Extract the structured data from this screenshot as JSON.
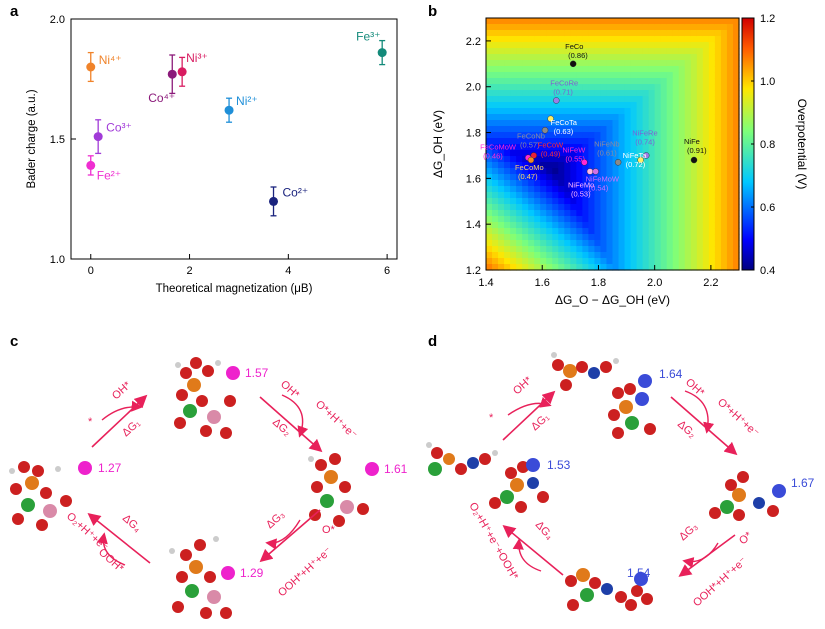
{
  "panel_labels": {
    "a": "a",
    "b": "b",
    "c": "c",
    "d": "d"
  },
  "chart_data": [
    {
      "type": "scatter",
      "panel": "a",
      "xlabel": "Theoretical magnetization (μB)",
      "ylabel": "Bader charge (a.u.)",
      "xlim": [
        -0.4,
        6.2
      ],
      "ylim": [
        1.0,
        2.0
      ],
      "xticks": [
        "0",
        "2",
        "4",
        "6"
      ],
      "yticks": [
        "1.0",
        "1.5",
        "2.0"
      ],
      "points": [
        {
          "label": "Ni⁴⁺",
          "x": 0.0,
          "y": 1.8,
          "err": 0.06,
          "color": "#f0832a"
        },
        {
          "label": "Co³⁺",
          "x": 0.15,
          "y": 1.51,
          "err": 0.07,
          "color": "#a13bd8"
        },
        {
          "label": "Fe²⁺",
          "x": 0.0,
          "y": 1.39,
          "err": 0.04,
          "color": "#ef2ed1"
        },
        {
          "label": "Co⁴⁺",
          "x": 1.65,
          "y": 1.77,
          "err": 0.08,
          "color": "#8b1a7a"
        },
        {
          "label": "Ni³⁺",
          "x": 1.85,
          "y": 1.78,
          "err": 0.06,
          "color": "#d81b60"
        },
        {
          "label": "Ni²⁺",
          "x": 2.8,
          "y": 1.62,
          "err": 0.05,
          "color": "#1f8fd8"
        },
        {
          "label": "Co²⁺",
          "x": 3.7,
          "y": 1.24,
          "err": 0.06,
          "color": "#1a237e"
        },
        {
          "label": "Fe³⁺",
          "x": 5.9,
          "y": 1.86,
          "err": 0.05,
          "color": "#138a7a"
        }
      ]
    },
    {
      "type": "heatmap",
      "panel": "b",
      "xlabel": "ΔG_O − ΔG_OH (eV)",
      "ylabel": "ΔG_OH (eV)",
      "colorbar_label": "Overpotential (V)",
      "xlim": [
        1.4,
        2.3
      ],
      "ylim": [
        1.2,
        2.3
      ],
      "xticks": [
        "1.4",
        "1.6",
        "1.8",
        "2.0",
        "2.2"
      ],
      "yticks": [
        "1.2",
        "1.4",
        "1.6",
        "1.8",
        "2.0",
        "2.2"
      ],
      "colorbar_ticks": [
        "0.4",
        "0.6",
        "0.8",
        "1.0",
        "1.2"
      ],
      "colorbar_range": [
        0.4,
        1.2
      ],
      "points": [
        {
          "name": "FeCo",
          "value": "(0.86)",
          "x": 1.71,
          "y": 2.1,
          "color": "#111111",
          "text_color": "#111111"
        },
        {
          "name": "FeCoRe",
          "value": "(0.71)",
          "x": 1.65,
          "y": 1.94,
          "color": "#9b7de8",
          "text_color": "#7c5fd6"
        },
        {
          "name": "FeCoTa",
          "value": "(0.63)",
          "x": 1.63,
          "y": 1.86,
          "color": "#ffee66",
          "text_color": "#ffffff"
        },
        {
          "name": "FeCoNb",
          "value": "(0.57)",
          "x": 1.61,
          "y": 1.81,
          "color": "#8a8a8a",
          "text_color": "#8a8aa0"
        },
        {
          "name": "FeCoMoW",
          "value": "(0.46)",
          "x": 1.55,
          "y": 1.69,
          "color": "#ff2ad4",
          "text_color": "#ff2ad4"
        },
        {
          "name": "FeCoW",
          "value": "(0.49)",
          "x": 1.57,
          "y": 1.7,
          "color": "#e8203a",
          "text_color": "#ff3030"
        },
        {
          "name": "FeCoMo",
          "value": "(0.47)",
          "x": 1.56,
          "y": 1.68,
          "color": "#f08a24",
          "text_color": "#ffcf6a"
        },
        {
          "name": "NiFeW",
          "value": "(0.55)",
          "x": 1.75,
          "y": 1.67,
          "color": "#ff2ad4",
          "text_color": "#ff2ad4"
        },
        {
          "name": "NiFeNb",
          "value": "(0.61)",
          "x": 1.87,
          "y": 1.67,
          "color": "#8a8a8a",
          "text_color": "#8a8aa0"
        },
        {
          "name": "NiFeMo",
          "value": "(0.53)",
          "x": 1.77,
          "y": 1.63,
          "color": "#ffb6e6",
          "text_color": "#ffb6ff"
        },
        {
          "name": "NiFeMoW",
          "value": "(0.54)",
          "x": 1.79,
          "y": 1.63,
          "color": "#d070e8",
          "text_color": "#d070ff"
        },
        {
          "name": "NiFeRe",
          "value": "(0.74)",
          "x": 1.97,
          "y": 1.7,
          "color": "#9b7de8",
          "text_color": "#7c5fd6"
        },
        {
          "name": "NiFeTa",
          "value": "(0.72)",
          "x": 1.95,
          "y": 1.68,
          "color": "#ffee66",
          "text_color": "#ffffff"
        },
        {
          "name": "NiFe",
          "value": "(0.91)",
          "x": 2.14,
          "y": 1.68,
          "color": "#111111",
          "text_color": "#111111"
        }
      ]
    }
  ],
  "cycle_c": {
    "color": "#e8215a",
    "charge_color": "#ee22cc",
    "charges": {
      "top": "1.57",
      "left": "1.27",
      "right": "1.61",
      "bottom": "1.29"
    },
    "steps": {
      "tl_species": "OH*",
      "tl_star": "*",
      "tl_dg": "ΔG₁",
      "tr_species": "OH*",
      "tr_product": "O*+H⁺+e⁻",
      "tr_dg": "ΔG₂",
      "br_species": "O*",
      "br_product": "OOH*+H⁺+e⁻",
      "br_dg": "ΔG₃",
      "bl_species": "OOH*",
      "bl_product": "O₂+H⁺+e⁻",
      "bl_dg": "ΔG₄"
    }
  },
  "cycle_d": {
    "color": "#e8215a",
    "charge_color": "#3a4bd8",
    "charges": {
      "top": "1.64",
      "left": "1.53",
      "right": "1.67",
      "bottom": "1.54"
    },
    "steps": {
      "tl_species": "OH*",
      "tl_star": "*",
      "tl_dg": "ΔG₁",
      "tr_species": "OH*",
      "tr_product": "O*+H⁺+e⁻",
      "tr_dg": "ΔG₂",
      "br_species": "O*",
      "br_product": "OOH*+H⁺+e⁻",
      "br_dg": "ΔG₃",
      "bl_species": "OOH*",
      "bl_product": "O₂+H⁺+e⁻+OOH*",
      "bl_dg": "ΔG₄"
    }
  }
}
